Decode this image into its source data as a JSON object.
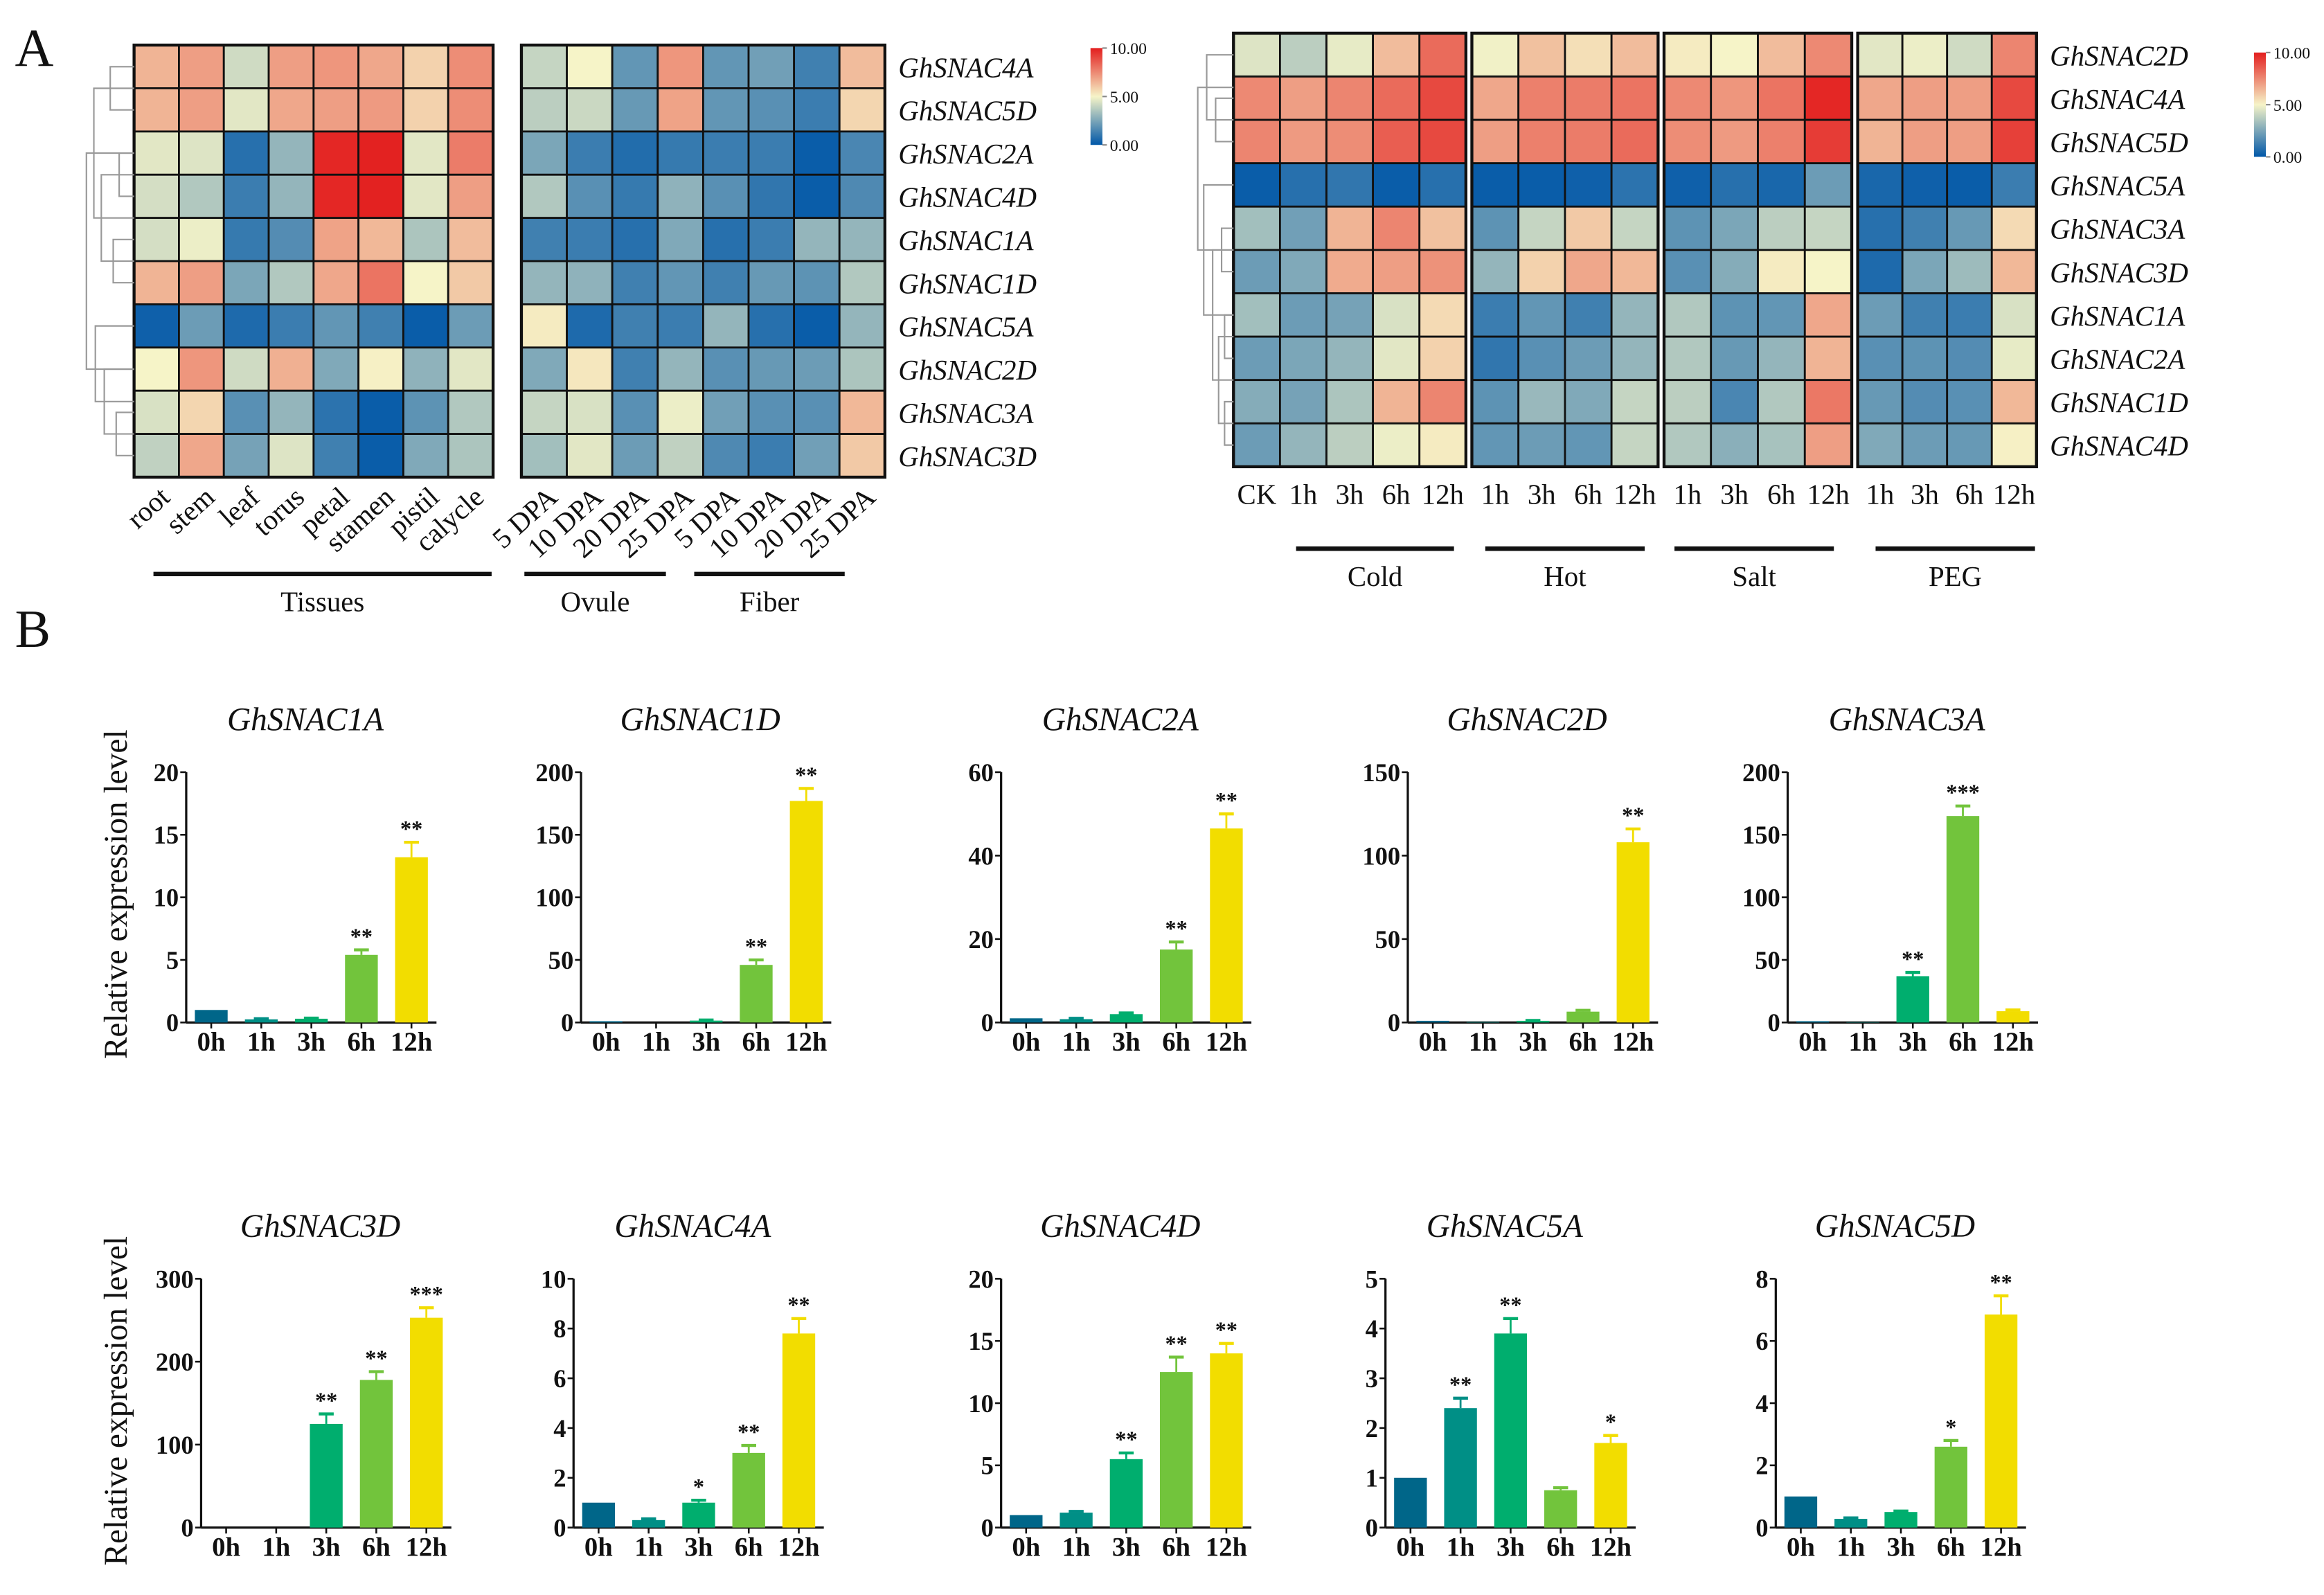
{
  "panel_labels": {
    "a": "A",
    "b": "B"
  },
  "bar_ylabel": "Relative expression level",
  "colors": {
    "heat_low": "#0057a8",
    "heat_mid": "#f6f4c8",
    "heat_high": "#e31e1e",
    "bars": [
      "#006689",
      "#008f86",
      "#00ae6e",
      "#72c43c",
      "#f2dd00"
    ]
  },
  "chart_data": [
    {
      "type": "heatmap",
      "colorbar": {
        "min": 0,
        "max": 10,
        "labels": [
          "10.00",
          "5.00",
          "0.00"
        ]
      },
      "rows": [
        "GhSNAC4A",
        "GhSNAC5D",
        "GhSNAC2A",
        "GhSNAC4D",
        "GhSNAC1A",
        "GhSNAC1D",
        "GhSNAC5A",
        "GhSNAC2D",
        "GhSNAC3A",
        "GhSNAC3D"
      ],
      "column_groups": [
        {
          "name": "Tissues",
          "columns": [
            "root",
            "stem",
            "leaf",
            "torus",
            "petal",
            "stamen",
            "pistil",
            "calycle"
          ]
        },
        {
          "name": "Ovule",
          "columns": [
            "5 DPA",
            "10 DPA",
            "20 DPA",
            "25 DPA"
          ]
        },
        {
          "name": "Fiber",
          "columns": [
            "5 DPA",
            "10 DPA",
            "20 DPA",
            "25 DPA"
          ]
        }
      ],
      "values": [
        [
          6.5,
          7.0,
          4.2,
          7.0,
          7.2,
          6.8,
          5.8,
          7.4,
          4.0,
          5.0,
          2.0,
          7.2,
          2.0,
          2.3,
          1.3,
          6.3
        ],
        [
          6.5,
          7.0,
          4.6,
          6.8,
          7.0,
          7.1,
          5.8,
          7.4,
          3.8,
          4.1,
          2.1,
          6.9,
          2.0,
          1.8,
          1.2,
          5.7
        ],
        [
          4.6,
          4.5,
          0.8,
          3.0,
          9.8,
          9.9,
          4.6,
          7.8,
          2.5,
          1.2,
          0.7,
          1.1,
          1.2,
          1.2,
          0.2,
          1.5
        ],
        [
          4.3,
          3.6,
          1.2,
          3.0,
          9.8,
          9.9,
          4.6,
          7.0,
          3.6,
          1.8,
          1.1,
          2.9,
          1.8,
          1.0,
          0.2,
          1.6
        ],
        [
          4.3,
          4.8,
          1.1,
          1.7,
          6.9,
          6.4,
          3.5,
          6.3,
          1.3,
          1.2,
          0.8,
          2.6,
          0.8,
          1.2,
          3.0,
          3.0
        ],
        [
          6.5,
          7.0,
          2.5,
          3.6,
          6.8,
          8.0,
          5.0,
          6.0,
          3.0,
          2.9,
          1.3,
          2.0,
          1.3,
          2.1,
          1.9,
          3.6
        ],
        [
          0.3,
          2.2,
          0.6,
          1.2,
          2.0,
          1.3,
          0.2,
          2.2,
          5.2,
          0.6,
          1.3,
          1.2,
          3.0,
          0.8,
          0.2,
          3.0
        ],
        [
          5.0,
          7.2,
          4.2,
          6.6,
          2.6,
          5.1,
          2.9,
          4.6,
          2.6,
          5.3,
          1.3,
          3.0,
          1.8,
          2.1,
          2.2,
          3.5
        ],
        [
          4.4,
          5.7,
          1.8,
          3.0,
          0.9,
          0.2,
          1.9,
          3.6,
          4.0,
          4.4,
          1.8,
          4.8,
          2.3,
          1.8,
          1.8,
          6.4
        ],
        [
          3.9,
          6.8,
          2.4,
          4.5,
          1.3,
          0.2,
          2.6,
          3.5,
          3.3,
          4.6,
          2.2,
          3.9,
          1.6,
          1.2,
          2.3,
          6.0
        ]
      ]
    },
    {
      "type": "heatmap",
      "colorbar": {
        "min": 0,
        "max": 10,
        "labels": [
          "10.00",
          "5.00",
          "0.00"
        ]
      },
      "rows": [
        "GhSNAC2D",
        "GhSNAC4A",
        "GhSNAC5D",
        "GhSNAC5A",
        "GhSNAC3A",
        "GhSNAC3D",
        "GhSNAC1A",
        "GhSNAC2A",
        "GhSNAC1D",
        "GhSNAC4D"
      ],
      "column_groups": [
        {
          "name": "Cold",
          "columns": [
            "CK",
            "1h",
            "3h",
            "6h",
            "12h"
          ]
        },
        {
          "name": "Hot",
          "columns": [
            "1h",
            "3h",
            "6h",
            "12h"
          ]
        },
        {
          "name": "Salt",
          "columns": [
            "1h",
            "3h",
            "6h",
            "12h"
          ]
        },
        {
          "name": "PEG",
          "columns": [
            "1h",
            "3h",
            "6h",
            "12h"
          ]
        }
      ],
      "values": [
        [
          4.5,
          3.8,
          4.7,
          6.3,
          8.2,
          4.9,
          6.2,
          5.5,
          6.3,
          5.2,
          5.0,
          6.3,
          7.5,
          4.6,
          4.8,
          4.2,
          7.6
        ],
        [
          7.5,
          7.0,
          7.6,
          8.2,
          9.0,
          6.8,
          7.7,
          7.8,
          8.0,
          7.5,
          7.2,
          8.0,
          9.8,
          6.8,
          7.0,
          7.0,
          9.0
        ],
        [
          7.6,
          7.1,
          7.4,
          8.5,
          9.0,
          7.0,
          7.7,
          7.8,
          8.2,
          7.4,
          7.1,
          7.7,
          9.3,
          6.5,
          7.0,
          7.0,
          9.2
        ],
        [
          0.2,
          0.8,
          1.0,
          0.2,
          0.8,
          0.2,
          0.2,
          0.3,
          0.9,
          0.3,
          0.8,
          0.5,
          2.2,
          0.5,
          0.3,
          0.2,
          1.2
        ],
        [
          3.3,
          2.3,
          6.5,
          7.6,
          6.2,
          1.9,
          4.0,
          6.0,
          4.0,
          1.9,
          2.5,
          3.8,
          4.0,
          0.8,
          1.3,
          2.1,
          5.6
        ],
        [
          2.2,
          2.6,
          6.7,
          7.0,
          7.3,
          3.0,
          5.8,
          6.8,
          6.4,
          1.8,
          2.7,
          5.2,
          5.0,
          0.6,
          2.5,
          3.2,
          6.4
        ],
        [
          3.3,
          2.2,
          2.4,
          4.4,
          5.6,
          1.2,
          2.0,
          1.3,
          3.0,
          3.6,
          1.9,
          2.0,
          6.8,
          2.2,
          1.3,
          1.2,
          4.4
        ],
        [
          2.2,
          2.5,
          3.0,
          4.6,
          5.8,
          1.0,
          1.8,
          2.2,
          3.0,
          3.6,
          2.1,
          3.0,
          6.5,
          1.8,
          1.9,
          1.7,
          4.7
        ],
        [
          2.7,
          2.4,
          3.5,
          6.5,
          7.6,
          1.9,
          3.1,
          2.6,
          4.0,
          3.8,
          1.5,
          3.6,
          7.9,
          2.1,
          1.7,
          1.8,
          6.4
        ],
        [
          2.2,
          3.0,
          3.8,
          4.8,
          5.2,
          2.0,
          2.2,
          2.0,
          4.0,
          3.6,
          2.8,
          3.4,
          7.0,
          2.6,
          2.2,
          2.1,
          5.1
        ]
      ]
    },
    {
      "type": "bar",
      "title": "GhSNAC1A",
      "categories": [
        "0h",
        "1h",
        "3h",
        "6h",
        "12h"
      ],
      "values": [
        1.0,
        0.25,
        0.3,
        5.4,
        13.2
      ],
      "errors": [
        0,
        0.05,
        0.05,
        0.4,
        1.2
      ],
      "significance": [
        "",
        "",
        "",
        "**",
        "**"
      ],
      "ylim": [
        0,
        20
      ],
      "yticks": [
        0,
        5,
        10,
        15,
        20
      ]
    },
    {
      "type": "bar",
      "title": "GhSNAC1D",
      "categories": [
        "0h",
        "1h",
        "3h",
        "6h",
        "12h"
      ],
      "values": [
        1,
        0,
        1.5,
        46,
        177
      ],
      "errors": [
        0,
        0,
        0.5,
        4,
        10
      ],
      "significance": [
        "",
        "",
        "",
        "**",
        "**"
      ],
      "ylim": [
        0,
        200
      ],
      "yticks": [
        0,
        50,
        100,
        150,
        200
      ]
    },
    {
      "type": "bar",
      "title": "GhSNAC2A",
      "categories": [
        "0h",
        "1h",
        "3h",
        "6h",
        "12h"
      ],
      "values": [
        1,
        0.8,
        2,
        17.5,
        46.5
      ],
      "errors": [
        0,
        0.2,
        0.3,
        1.8,
        3.5
      ],
      "significance": [
        "",
        "",
        "",
        "**",
        "**"
      ],
      "ylim": [
        0,
        60
      ],
      "yticks": [
        0,
        20,
        40,
        60
      ]
    },
    {
      "type": "bar",
      "title": "GhSNAC2D",
      "categories": [
        "0h",
        "1h",
        "3h",
        "6h",
        "12h"
      ],
      "values": [
        1,
        0.3,
        1,
        6.5,
        108
      ],
      "errors": [
        0,
        0,
        0.2,
        0.8,
        8
      ],
      "significance": [
        "",
        "",
        "",
        "",
        "**"
      ],
      "ylim": [
        0,
        150
      ],
      "yticks": [
        0,
        50,
        100,
        150
      ]
    },
    {
      "type": "bar",
      "title": "GhSNAC3A",
      "categories": [
        "0h",
        "1h",
        "3h",
        "6h",
        "12h"
      ],
      "values": [
        1,
        0.3,
        37,
        165,
        9
      ],
      "errors": [
        0,
        0,
        3,
        8,
        1
      ],
      "significance": [
        "",
        "",
        "**",
        "***",
        ""
      ],
      "ylim": [
        0,
        200
      ],
      "yticks": [
        0,
        50,
        100,
        150,
        200
      ]
    },
    {
      "type": "bar",
      "title": "GhSNAC3D",
      "categories": [
        "0h",
        "1h",
        "3h",
        "6h",
        "12h"
      ],
      "values": [
        0,
        0,
        125,
        178,
        253
      ],
      "errors": [
        0,
        0,
        12,
        10,
        12
      ],
      "significance": [
        "",
        "",
        "**",
        "**",
        "***"
      ],
      "ylim": [
        0,
        300
      ],
      "yticks": [
        0,
        100,
        200,
        300
      ]
    },
    {
      "type": "bar",
      "title": "GhSNAC4A",
      "categories": [
        "0h",
        "1h",
        "3h",
        "6h",
        "12h"
      ],
      "values": [
        1,
        0.3,
        1,
        3,
        7.8
      ],
      "errors": [
        0,
        0.05,
        0.1,
        0.3,
        0.6
      ],
      "significance": [
        "",
        "",
        "*",
        "**",
        "**"
      ],
      "ylim": [
        0,
        10
      ],
      "yticks": [
        0,
        2,
        4,
        6,
        8,
        10
      ]
    },
    {
      "type": "bar",
      "title": "GhSNAC4D",
      "categories": [
        "0h",
        "1h",
        "3h",
        "6h",
        "12h"
      ],
      "values": [
        1,
        1.2,
        5.5,
        12.5,
        14
      ],
      "errors": [
        0,
        0.1,
        0.5,
        1.2,
        0.8
      ],
      "significance": [
        "",
        "",
        "**",
        "**",
        "**"
      ],
      "ylim": [
        0,
        20
      ],
      "yticks": [
        0,
        5,
        10,
        15,
        20
      ]
    },
    {
      "type": "bar",
      "title": "GhSNAC5A",
      "categories": [
        "0h",
        "1h",
        "3h",
        "6h",
        "12h"
      ],
      "values": [
        1,
        2.4,
        3.9,
        0.75,
        1.7
      ],
      "errors": [
        0,
        0.2,
        0.3,
        0.05,
        0.15
      ],
      "significance": [
        "",
        "**",
        "**",
        "",
        "*"
      ],
      "ylim": [
        0,
        5
      ],
      "yticks": [
        0,
        1,
        2,
        3,
        4,
        5
      ]
    },
    {
      "type": "bar",
      "title": "GhSNAC5D",
      "categories": [
        "0h",
        "1h",
        "3h",
        "6h",
        "12h"
      ],
      "values": [
        1,
        0.28,
        0.5,
        2.6,
        6.85
      ],
      "errors": [
        0,
        0.03,
        0.03,
        0.2,
        0.6
      ],
      "significance": [
        "",
        "",
        "",
        "*",
        "**"
      ],
      "ylim": [
        0,
        8
      ],
      "yticks": [
        0,
        2,
        4,
        6,
        8
      ]
    }
  ]
}
